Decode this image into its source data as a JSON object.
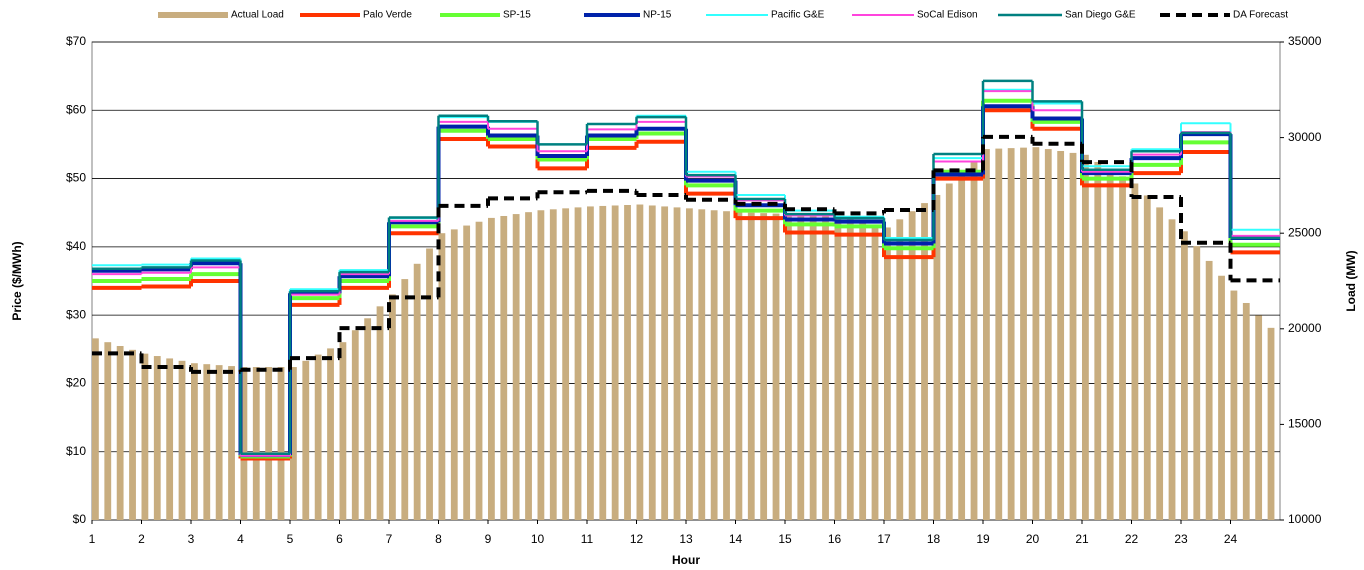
{
  "chart_data": {
    "type": "combo",
    "x_label": "Hour",
    "y_label": "Price ($/MWh)",
    "y2_label": "Load (MW)",
    "x": [
      1,
      2,
      3,
      4,
      5,
      6,
      7,
      8,
      9,
      10,
      11,
      12,
      13,
      14,
      15,
      16,
      17,
      18,
      19,
      20,
      21,
      22,
      23,
      24
    ],
    "xlim": [
      1,
      25
    ],
    "xticks": [
      1,
      2,
      3,
      4,
      5,
      6,
      7,
      8,
      9,
      10,
      11,
      12,
      13,
      14,
      15,
      16,
      17,
      18,
      19,
      20,
      21,
      22,
      23,
      24
    ],
    "ylim": [
      0,
      70
    ],
    "yticks": [
      {
        "value": 0,
        "label": "$0"
      },
      {
        "value": 10,
        "label": "$10"
      },
      {
        "value": 20,
        "label": "$20"
      },
      {
        "value": 30,
        "label": "$30"
      },
      {
        "value": 40,
        "label": "$40"
      },
      {
        "value": 50,
        "label": "$50"
      },
      {
        "value": 60,
        "label": "$60"
      },
      {
        "value": 70,
        "label": "$70"
      }
    ],
    "y2lim": [
      10000,
      35000
    ],
    "y2ticks": [
      10000,
      15000,
      20000,
      25000,
      30000,
      35000
    ],
    "grid": true,
    "legend": "top",
    "series": [
      {
        "name": "Actual Load",
        "type": "bar",
        "axis": "y2",
        "color": "#c8ad7f",
        "x": [
          1,
          1.25,
          1.5,
          1.75,
          2,
          2.25,
          2.5,
          2.75,
          3,
          3.25,
          3.5,
          3.75,
          4,
          4.25,
          4.5,
          4.75,
          5,
          5.25,
          5.5,
          5.75,
          6,
          6.25,
          6.5,
          6.75,
          7,
          7.25,
          7.5,
          7.75,
          8,
          8.25,
          8.5,
          8.75,
          9,
          9.25,
          9.5,
          9.75,
          10,
          10.25,
          10.5,
          10.75,
          11,
          11.25,
          11.5,
          11.75,
          12,
          12.25,
          12.5,
          12.75,
          13,
          13.25,
          13.5,
          13.75,
          14,
          14.25,
          14.5,
          14.75,
          15,
          15.25,
          15.5,
          15.75,
          16,
          16.25,
          16.5,
          16.75,
          17,
          17.25,
          17.5,
          17.75,
          18,
          18.25,
          18.5,
          18.75,
          19,
          19.25,
          19.5,
          19.75,
          20,
          20.25,
          20.5,
          20.75,
          21,
          21.25,
          21.5,
          21.75,
          22,
          22.25,
          22.5,
          22.75,
          23,
          23.25,
          23.5,
          23.75,
          24,
          24.25,
          24.5,
          24.75
        ],
        "values": [
          19500,
          19300,
          19100,
          18900,
          18700,
          18575,
          18450,
          18325,
          18200,
          18150,
          18100,
          18050,
          18000,
          18000,
          18000,
          18000,
          18000,
          18325,
          18650,
          18975,
          19300,
          19925,
          20550,
          21175,
          21800,
          22600,
          23400,
          24200,
          25000,
          25200,
          25400,
          25600,
          25800,
          25900,
          26000,
          26100,
          26200,
          26250,
          26300,
          26350,
          26400,
          26425,
          26450,
          26475,
          26500,
          26450,
          26400,
          26350,
          26300,
          26250,
          26200,
          26150,
          26100,
          26075,
          26050,
          26025,
          26000,
          25975,
          25950,
          25925,
          25900,
          25750,
          25600,
          25450,
          25300,
          25725,
          26150,
          26575,
          27000,
          27600,
          28200,
          28800,
          29400,
          29425,
          29450,
          29475,
          29500,
          29400,
          29300,
          29200,
          29100,
          28725,
          28350,
          27975,
          27600,
          26975,
          26350,
          25725,
          25100,
          24325,
          23550,
          22775,
          22000,
          21350,
          20700,
          20050
        ]
      },
      {
        "name": "Palo Verde",
        "type": "step",
        "axis": "y",
        "color": "#ff3300",
        "width": 4,
        "values": [
          34,
          34.2,
          35,
          9,
          31.5,
          34,
          42,
          55.8,
          54.7,
          51.5,
          54.5,
          55.4,
          47.8,
          44.2,
          42.1,
          41.8,
          38.5,
          50,
          60,
          57.3,
          49,
          50.8,
          53.9,
          39.2
        ]
      },
      {
        "name": "SP-15",
        "type": "step",
        "axis": "y",
        "color": "#66ff33",
        "width": 4,
        "values": [
          35,
          35.3,
          36,
          9.3,
          32.5,
          35,
          43,
          57,
          55.8,
          52.8,
          55.8,
          56.6,
          49,
          45.3,
          43.3,
          43,
          39.8,
          51,
          61.4,
          58.3,
          50,
          52,
          55.3,
          40.3
        ]
      },
      {
        "name": "NP-15",
        "type": "step",
        "axis": "y",
        "color": "#0022aa",
        "width": 4,
        "values": [
          36.5,
          36.7,
          37.6,
          9.5,
          33.2,
          35.7,
          43.6,
          57.6,
          56.3,
          53.3,
          56.3,
          57.3,
          49.7,
          46.1,
          44,
          43.7,
          40.5,
          50.6,
          60.6,
          58.8,
          50.8,
          53,
          56.5,
          41.3
        ]
      },
      {
        "name": "Pacific G&E",
        "type": "step",
        "axis": "y",
        "color": "#33ffff",
        "width": 2,
        "values": [
          37.3,
          37.4,
          38.3,
          9.6,
          33.8,
          36.6,
          44.2,
          59,
          58.3,
          55,
          58,
          59.2,
          51,
          47.6,
          45.3,
          44.4,
          41.3,
          53,
          63,
          61,
          51.8,
          54.3,
          58.1,
          42.5
        ]
      },
      {
        "name": "SoCal Edison",
        "type": "step",
        "axis": "y",
        "color": "#ff44dd",
        "width": 2,
        "values": [
          36,
          36.2,
          37,
          9.4,
          33,
          36,
          43.8,
          58.3,
          57.3,
          54,
          57.2,
          58.3,
          50.3,
          46.8,
          44.6,
          44.2,
          41,
          52.5,
          62.8,
          60,
          51,
          53.5,
          56.8,
          41.6
        ]
      },
      {
        "name": "San Diego G&E",
        "type": "step",
        "axis": "y",
        "color": "#008080",
        "width": 2.5,
        "values": [
          36.8,
          37,
          38,
          9.7,
          33.5,
          36.3,
          44.3,
          59.2,
          58.4,
          55,
          58,
          59,
          50.5,
          47,
          44.8,
          44.2,
          41,
          53.6,
          64.3,
          61.3,
          51.3,
          54,
          56.7,
          41.3
        ]
      },
      {
        "name": "DA Forecast",
        "type": "step",
        "axis": "y",
        "color": "#000000",
        "width": 4,
        "dash": true,
        "values": [
          24.4,
          22.4,
          21.7,
          22,
          23.7,
          28.1,
          32.6,
          46,
          47.1,
          48,
          48.2,
          47.6,
          46.9,
          46.3,
          45.5,
          44.9,
          45.4,
          51.2,
          56.1,
          55.1,
          52.4,
          47.3,
          40.6,
          35.1
        ]
      }
    ]
  }
}
